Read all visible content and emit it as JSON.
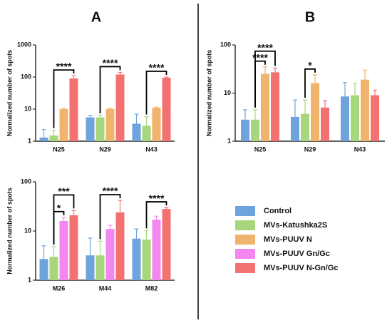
{
  "panels": [
    "A",
    "B"
  ],
  "legend": [
    {
      "name": "Control",
      "color": "#6fa3dc"
    },
    {
      "name": "MVs-Katushka2S",
      "color": "#a8d67c"
    },
    {
      "name": "MVs-PUUV N",
      "color": "#f0b46c"
    },
    {
      "name": "MVs-PUUV Gn/Gc",
      "color": "#f287f0"
    },
    {
      "name": "MVs-PUUV N-Gn/Gc",
      "color": "#f27272"
    }
  ],
  "chart_data": [
    {
      "type": "bar",
      "ylabel": "Normalized number of spots",
      "log_scale": true,
      "categories": [
        "N25",
        "N29",
        "N43"
      ],
      "ylim": [
        1,
        1000
      ],
      "yticks": [
        1,
        10,
        100,
        1000
      ],
      "series": [
        {
          "color": "#6fa3dc",
          "values": [
            1.3,
            5.5,
            3.5
          ],
          "errors": [
            1.0,
            0.8,
            3.5
          ]
        },
        {
          "color": "#a8d67c",
          "values": [
            1.5,
            5.5,
            3.0
          ],
          "errors": [
            0.7,
            0.8,
            2.8
          ]
        },
        {
          "color": "#f0b46c",
          "values": [
            10,
            10,
            11
          ],
          "errors": [
            0.5,
            0.5,
            0.5
          ]
        },
        {
          "color": "#f27272",
          "values": [
            90,
            120,
            95
          ],
          "errors": [
            20,
            20,
            5
          ]
        }
      ],
      "annotations": [
        {
          "category": 0,
          "from": 1,
          "to": 3,
          "label": "****"
        },
        {
          "category": 1,
          "from": 1,
          "to": 3,
          "label": "****"
        },
        {
          "category": 2,
          "from": 1,
          "to": 3,
          "label": "****"
        }
      ]
    },
    {
      "type": "bar",
      "ylabel": "Normalized number of spots",
      "log_scale": true,
      "categories": [
        "N25",
        "N29",
        "N43"
      ],
      "ylim": [
        1,
        100
      ],
      "yticks": [
        1,
        10,
        100
      ],
      "series": [
        {
          "color": "#6fa3dc",
          "values": [
            2.8,
            3.2,
            8.5
          ],
          "errors": [
            1.7,
            4,
            8
          ]
        },
        {
          "color": "#a8d67c",
          "values": [
            2.8,
            3.7,
            9
          ],
          "errors": [
            1.7,
            3.5,
            7
          ]
        },
        {
          "color": "#f0b46c",
          "values": [
            25,
            16,
            19
          ],
          "errors": [
            10,
            8,
            11
          ]
        },
        {
          "color": "#f27272",
          "values": [
            27,
            5,
            9
          ],
          "errors": [
            6,
            2,
            2.5
          ]
        }
      ],
      "annotations": [
        {
          "category": 0,
          "from": 1,
          "to": 2,
          "label": "****"
        },
        {
          "category": 0,
          "from": 1,
          "to": 3,
          "label": "****"
        },
        {
          "category": 1,
          "from": 1,
          "to": 2,
          "label": "*"
        }
      ]
    },
    {
      "type": "bar",
      "ylabel": "Normalized number of spots",
      "log_scale": true,
      "categories": [
        "M26",
        "M44",
        "M82"
      ],
      "ylim": [
        1,
        100
      ],
      "yticks": [
        1,
        10,
        100
      ],
      "series": [
        {
          "color": "#6fa3dc",
          "values": [
            2.7,
            3.2,
            7
          ],
          "errors": [
            2.3,
            4,
            4
          ]
        },
        {
          "color": "#a8d67c",
          "values": [
            3.0,
            3.2,
            6.7
          ],
          "errors": [
            1.8,
            3,
            3.5
          ]
        },
        {
          "color": "#f287f0",
          "values": [
            16,
            11,
            17
          ],
          "errors": [
            3,
            2,
            3
          ]
        },
        {
          "color": "#f27272",
          "values": [
            21,
            24,
            28
          ],
          "errors": [
            5,
            18,
            2
          ]
        }
      ],
      "annotations": [
        {
          "category": 0,
          "from": 1,
          "to": 2,
          "label": "*"
        },
        {
          "category": 0,
          "from": 1,
          "to": 3,
          "label": "***"
        },
        {
          "category": 1,
          "from": 1,
          "to": 3,
          "label": "****"
        },
        {
          "category": 2,
          "from": 1,
          "to": 3,
          "label": "****"
        }
      ]
    }
  ]
}
